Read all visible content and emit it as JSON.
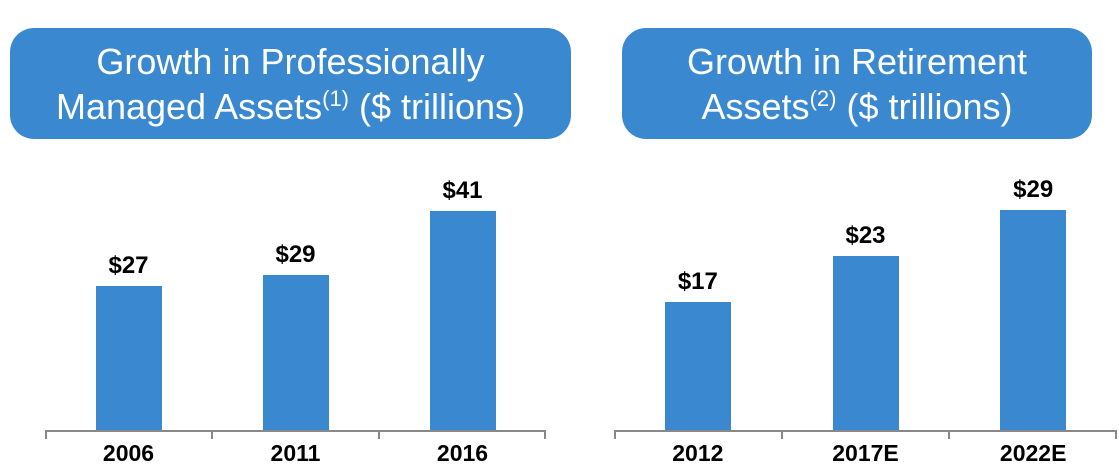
{
  "theme": {
    "accent": "#3A89D0",
    "title_text": "#FFFFFF",
    "axis_color": "#888888",
    "label_color": "#000000",
    "background": "#FFFFFF"
  },
  "chart_data": [
    {
      "type": "bar",
      "title": "Growth in Professionally Managed Assets(1) ($ trillions)",
      "title_lines": {
        "line1": "Growth in Professionally",
        "line2_pre": "Managed Assets",
        "sup": "(1)",
        "line2_post": " ($ trillions)"
      },
      "categories": [
        "2006",
        "2011",
        "2016"
      ],
      "values": [
        27,
        29,
        41
      ],
      "value_labels": [
        "$27",
        "$29",
        "$41"
      ],
      "ylim": [
        0,
        45
      ],
      "grid": false,
      "legend": "none",
      "bar_color": "#3A89D0"
    },
    {
      "type": "bar",
      "title": "Growth in Retirement Assets(2) ($ trillions)",
      "title_lines": {
        "line1": "Growth in Retirement",
        "line2_pre": "Assets",
        "sup": "(2)",
        "line2_post": " ($ trillions)"
      },
      "categories": [
        "2012",
        "2017E",
        "2022E"
      ],
      "values": [
        17,
        23,
        29
      ],
      "value_labels": [
        "$17",
        "$23",
        "$29"
      ],
      "ylim": [
        0,
        31
      ],
      "grid": false,
      "legend": "none",
      "bar_color": "#3A89D0"
    }
  ]
}
